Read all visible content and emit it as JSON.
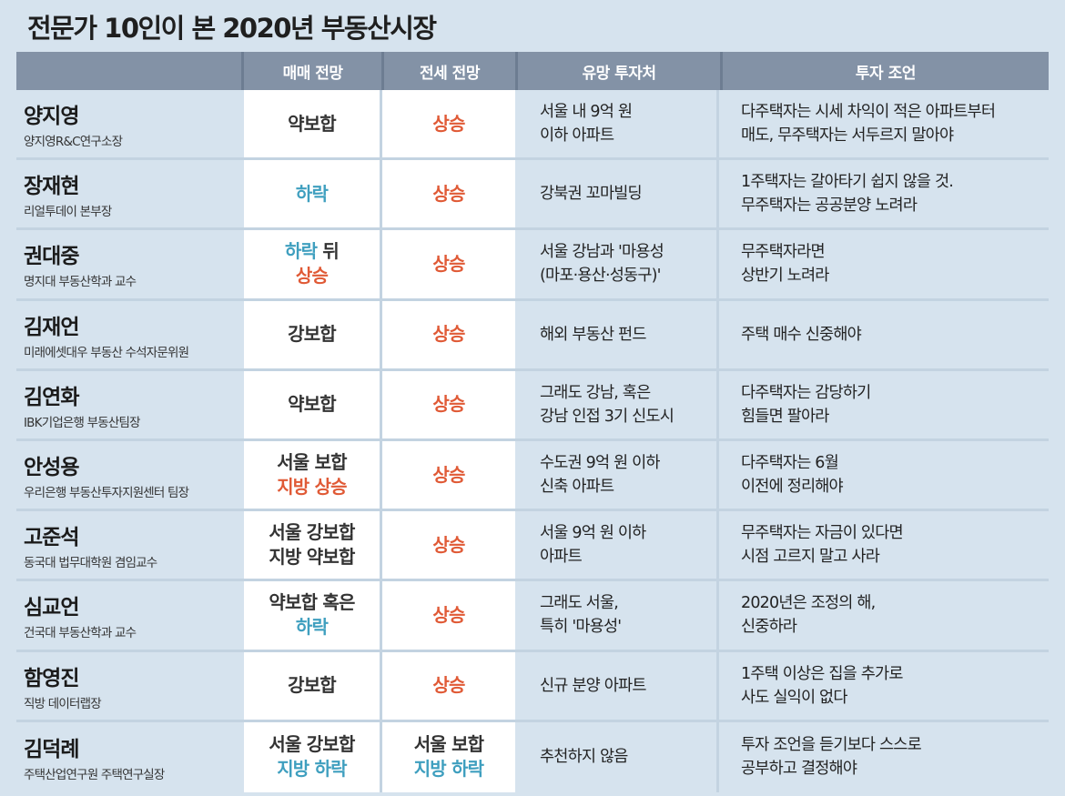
{
  "title": "전문가 10인이 본 2020년 부동산시장",
  "colors": {
    "up": "#e05a36",
    "down": "#3f9fbf",
    "header_bg": "#8392a6",
    "page_bg": "#d6e3ee"
  },
  "headers": {
    "name": "",
    "sale": "매매 전망",
    "jeonse": "전세 전망",
    "invest": "유망 투자처",
    "advice": "투자 조언"
  },
  "rows": [
    {
      "name": "양지영",
      "title": "양지영R&C연구소장",
      "sale": [
        {
          "t": "약보합",
          "c": "neutral"
        }
      ],
      "jeonse": [
        {
          "t": "상승",
          "c": "up"
        }
      ],
      "invest": [
        "서울 내 9억 원",
        "이하 아파트"
      ],
      "advice": [
        "다주택자는 시세 차익이 적은 아파트부터",
        "매도, 무주택자는 서두르지 말아야"
      ]
    },
    {
      "name": "장재현",
      "title": "리얼투데이 본부장",
      "sale": [
        {
          "t": "하락",
          "c": "down"
        }
      ],
      "jeonse": [
        {
          "t": "상승",
          "c": "up"
        }
      ],
      "invest": [
        "강북권 꼬마빌딩"
      ],
      "advice": [
        "1주택자는 갈아타기 쉽지 않을 것.",
        "무주택자는 공공분양 노려라"
      ]
    },
    {
      "name": "권대중",
      "title": "명지대 부동산학과 교수",
      "sale": [
        {
          "t": "하락",
          "c": "down",
          "t2": " 뒤",
          "c2": "neutral"
        },
        {
          "t": "상승",
          "c": "up"
        }
      ],
      "jeonse": [
        {
          "t": "상승",
          "c": "up"
        }
      ],
      "invest": [
        "서울 강남과 '마용성",
        "(마포·용산·성동구)'"
      ],
      "advice": [
        "무주택자라면",
        "상반기 노려라"
      ]
    },
    {
      "name": "김재언",
      "title": "미래에셋대우 부동산 수석자문위원",
      "sale": [
        {
          "t": "강보합",
          "c": "neutral"
        }
      ],
      "jeonse": [
        {
          "t": "상승",
          "c": "up"
        }
      ],
      "invest": [
        "해외 부동산 펀드"
      ],
      "advice": [
        "주택 매수 신중해야"
      ]
    },
    {
      "name": "김연화",
      "title": "IBK기업은행 부동산팀장",
      "sale": [
        {
          "t": "약보합",
          "c": "neutral"
        }
      ],
      "jeonse": [
        {
          "t": "상승",
          "c": "up"
        }
      ],
      "invest": [
        "그래도 강남, 혹은",
        "강남 인접 3기 신도시"
      ],
      "advice": [
        "다주택자는 감당하기",
        "힘들면 팔아라"
      ]
    },
    {
      "name": "안성용",
      "title": "우리은행 부동산투자지원센터 팀장",
      "sale": [
        {
          "t": "서울 보합",
          "c": "neutral"
        },
        {
          "t": "지방 상승",
          "c": "up"
        }
      ],
      "jeonse": [
        {
          "t": "상승",
          "c": "up"
        }
      ],
      "invest": [
        "수도권 9억 원 이하",
        "신축 아파트"
      ],
      "advice": [
        "다주택자는 6월",
        "이전에 정리해야"
      ]
    },
    {
      "name": "고준석",
      "title": "동국대 법무대학원 겸임교수",
      "sale": [
        {
          "t": "서울 강보합",
          "c": "neutral"
        },
        {
          "t": "지방 약보합",
          "c": "neutral"
        }
      ],
      "jeonse": [
        {
          "t": "상승",
          "c": "up"
        }
      ],
      "invest": [
        "서울 9억 원 이하",
        "아파트"
      ],
      "advice": [
        "무주택자는 자금이 있다면",
        "시점 고르지 말고 사라"
      ]
    },
    {
      "name": "심교언",
      "title": "건국대 부동산학과 교수",
      "sale": [
        {
          "t": "약보합 혹은",
          "c": "neutral"
        },
        {
          "t": "하락",
          "c": "down"
        }
      ],
      "jeonse": [
        {
          "t": "상승",
          "c": "up"
        }
      ],
      "invest": [
        "그래도 서울,",
        "특히 '마용성'"
      ],
      "advice": [
        "2020년은 조정의 해,",
        "신중하라"
      ]
    },
    {
      "name": "함영진",
      "title": "직방 데이터랩장",
      "sale": [
        {
          "t": "강보합",
          "c": "neutral"
        }
      ],
      "jeonse": [
        {
          "t": "상승",
          "c": "up"
        }
      ],
      "invest": [
        "신규 분양 아파트"
      ],
      "advice": [
        "1주택 이상은 집을 추가로",
        "사도 실익이 없다"
      ]
    },
    {
      "name": "김덕례",
      "title": "주택산업연구원 주택연구실장",
      "sale": [
        {
          "t": "서울 강보합",
          "c": "neutral"
        },
        {
          "t": "지방 하락",
          "c": "down"
        }
      ],
      "jeonse": [
        {
          "t": "서울 보합",
          "c": "neutral"
        },
        {
          "t": "지방 하락",
          "c": "down"
        }
      ],
      "invest": [
        "추천하지 않음"
      ],
      "advice": [
        "투자 조언을 듣기보다 스스로",
        "공부하고 결정해야"
      ]
    }
  ]
}
